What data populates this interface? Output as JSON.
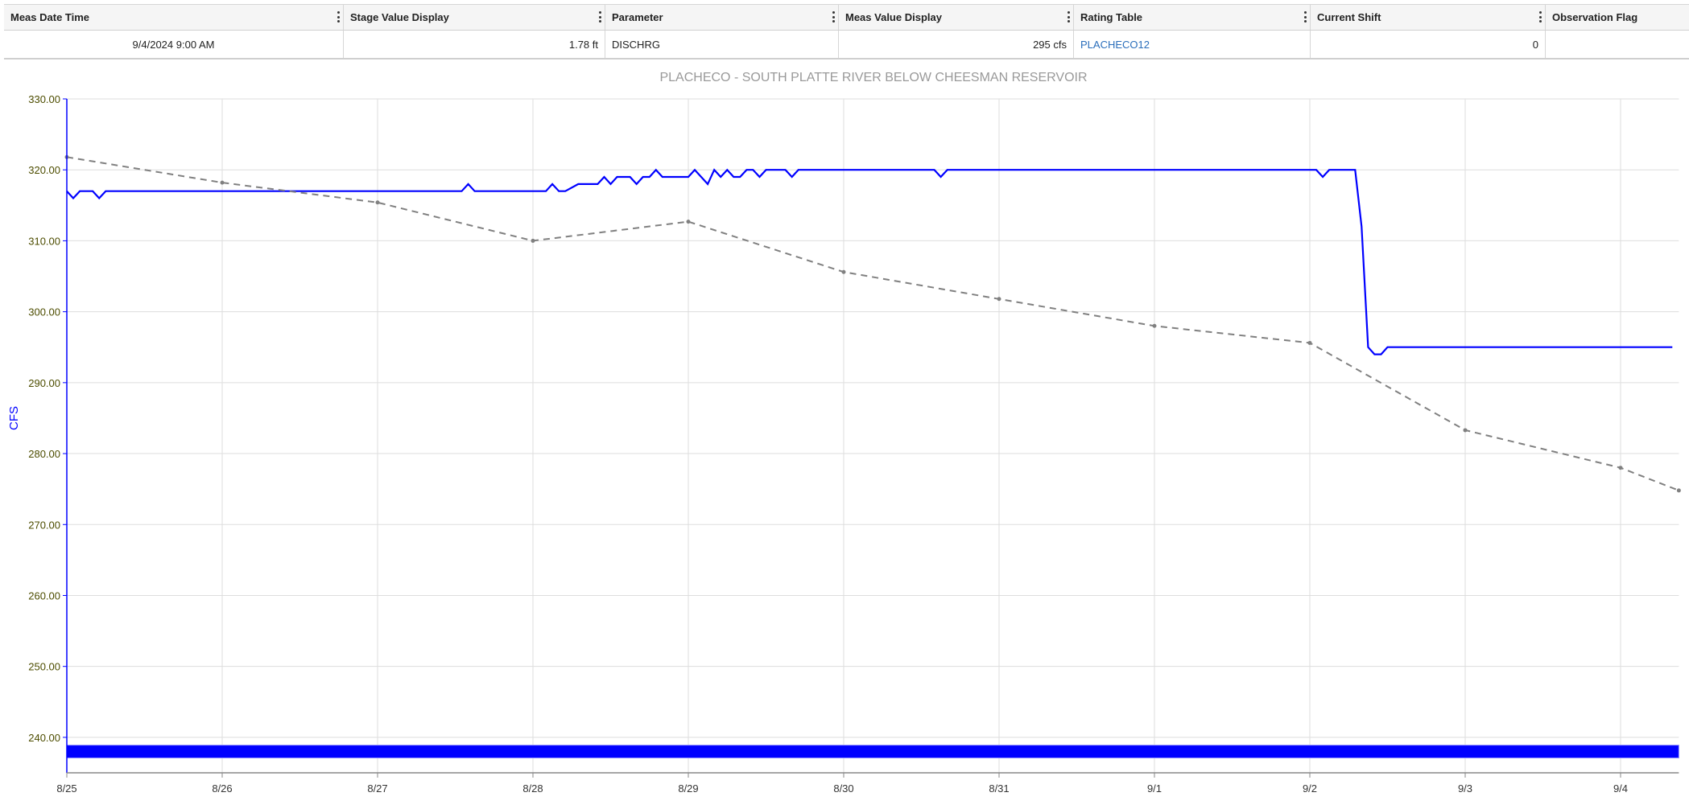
{
  "table": {
    "columns": [
      "Meas Date Time",
      "Stage Value Display",
      "Parameter",
      "Meas Value Display",
      "Rating Table",
      "Current Shift",
      "Observation Flag"
    ],
    "row": [
      "9/4/2024 9:00 AM",
      "1.78 ft",
      "DISCHRG",
      "295 cfs",
      "PLACHECO12",
      "0",
      ""
    ]
  },
  "chart_data": {
    "type": "line",
    "title": "PLACHECO - SOUTH PLATTE RIVER BELOW CHEESMAN RESERVOIR",
    "xlabel": "",
    "ylabel": "CFS",
    "ylim": [
      235,
      330
    ],
    "xlim": [
      "2024-08-25T00:00",
      "2024-09-04T09:00"
    ],
    "yticks": [
      "240.00",
      "250.00",
      "260.00",
      "270.00",
      "280.00",
      "290.00",
      "300.00",
      "310.00",
      "320.00",
      "330.00"
    ],
    "xticks": [
      "8/25",
      "8/26",
      "8/27",
      "8/28",
      "8/29",
      "8/30",
      "8/31",
      "9/1",
      "9/2",
      "9/3",
      "9/4"
    ],
    "grid": true,
    "colors": {
      "series": "#0000ff",
      "reference": "#808080",
      "axis": "#0000ff",
      "tick_label": "#4d4d00",
      "title": "#999999",
      "band": "#0000ff"
    },
    "series": [
      {
        "style": "solid",
        "points": [
          [
            "2024-08-25T00:00",
            317
          ],
          [
            "2024-08-25T01:00",
            316
          ],
          [
            "2024-08-25T02:00",
            317
          ],
          [
            "2024-08-25T04:00",
            317
          ],
          [
            "2024-08-25T05:00",
            316
          ],
          [
            "2024-08-25T06:00",
            317
          ],
          [
            "2024-08-27T13:00",
            317
          ],
          [
            "2024-08-27T14:00",
            318
          ],
          [
            "2024-08-27T15:00",
            317
          ],
          [
            "2024-08-28T02:00",
            317
          ],
          [
            "2024-08-28T03:00",
            318
          ],
          [
            "2024-08-28T04:00",
            317
          ],
          [
            "2024-08-28T05:00",
            317
          ],
          [
            "2024-08-28T07:00",
            318
          ],
          [
            "2024-08-28T10:00",
            318
          ],
          [
            "2024-08-28T11:00",
            319
          ],
          [
            "2024-08-28T12:00",
            318
          ],
          [
            "2024-08-28T13:00",
            319
          ],
          [
            "2024-08-28T15:00",
            319
          ],
          [
            "2024-08-28T16:00",
            318
          ],
          [
            "2024-08-28T17:00",
            319
          ],
          [
            "2024-08-28T18:00",
            319
          ],
          [
            "2024-08-28T19:00",
            320
          ],
          [
            "2024-08-28T20:00",
            319
          ],
          [
            "2024-08-29T00:00",
            319
          ],
          [
            "2024-08-29T01:00",
            320
          ],
          [
            "2024-08-29T03:00",
            318
          ],
          [
            "2024-08-29T04:00",
            320
          ],
          [
            "2024-08-29T05:00",
            319
          ],
          [
            "2024-08-29T06:00",
            320
          ],
          [
            "2024-08-29T07:00",
            319
          ],
          [
            "2024-08-29T08:00",
            319
          ],
          [
            "2024-08-29T09:00",
            320
          ],
          [
            "2024-08-29T10:00",
            320
          ],
          [
            "2024-08-29T11:00",
            319
          ],
          [
            "2024-08-29T12:00",
            320
          ],
          [
            "2024-08-29T15:00",
            320
          ],
          [
            "2024-08-29T16:00",
            319
          ],
          [
            "2024-08-29T17:00",
            320
          ],
          [
            "2024-08-30T14:00",
            320
          ],
          [
            "2024-08-30T15:00",
            319
          ],
          [
            "2024-08-30T16:00",
            320
          ],
          [
            "2024-09-02T01:00",
            320
          ],
          [
            "2024-09-02T02:00",
            319
          ],
          [
            "2024-09-02T03:00",
            320
          ],
          [
            "2024-09-02T07:00",
            320
          ],
          [
            "2024-09-02T08:00",
            312
          ],
          [
            "2024-09-02T09:00",
            295
          ],
          [
            "2024-09-02T10:00",
            294
          ],
          [
            "2024-09-02T11:00",
            294
          ],
          [
            "2024-09-02T12:00",
            295
          ],
          [
            "2024-09-04T08:00",
            295
          ]
        ]
      },
      {
        "style": "dashed",
        "points": [
          [
            "2024-08-25T00:00",
            321.8
          ],
          [
            "2024-08-26T00:00",
            318.2
          ],
          [
            "2024-08-27T00:00",
            315.4
          ],
          [
            "2024-08-28T00:00",
            310.0
          ],
          [
            "2024-08-29T00:00",
            312.7
          ],
          [
            "2024-08-30T00:00",
            305.6
          ],
          [
            "2024-08-31T00:00",
            301.8
          ],
          [
            "2024-09-01T00:00",
            298.0
          ],
          [
            "2024-09-02T00:00",
            295.6
          ],
          [
            "2024-09-03T00:00",
            283.3
          ],
          [
            "2024-09-04T00:00",
            278.0
          ],
          [
            "2024-09-04T09:00",
            274.8
          ]
        ]
      }
    ],
    "band": {
      "from": "2024-08-25T00:00",
      "to": "2024-09-04T09:00",
      "ymin": 237.1,
      "ymax": 238.9
    }
  }
}
